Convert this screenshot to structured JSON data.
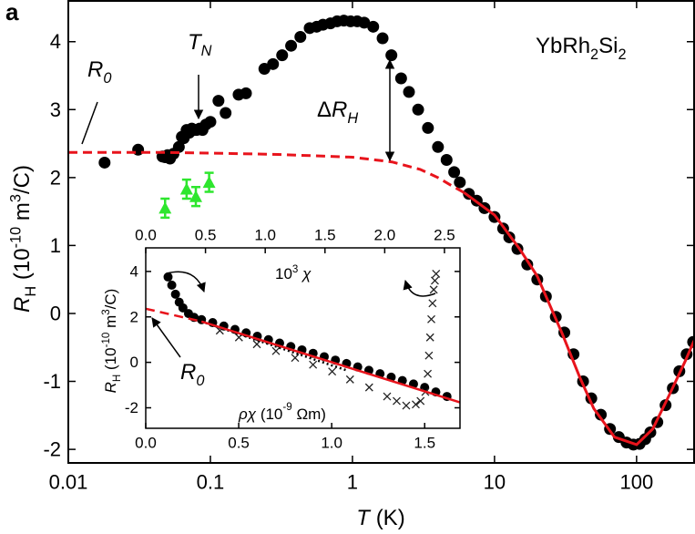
{
  "chart_data": [
    {
      "type": "scatter",
      "panel_label": "a",
      "x_label": {
        "parts": [
          "T",
          "(K)"
        ]
      },
      "y_label": {
        "parts": [
          "R",
          "H",
          "(10",
          "-10",
          "m",
          "3",
          "/C)"
        ]
      },
      "xscale": "log",
      "xlim": [
        0.01,
        254
      ],
      "xticks": [
        0.01,
        0.1,
        1,
        10,
        100
      ],
      "ylim": [
        -2.2,
        4.6
      ],
      "yticks": [
        -2,
        -1,
        0,
        1,
        2,
        3,
        4
      ],
      "annotations": [
        {
          "parts": [
            "YbRh",
            "2",
            "Si",
            "2"
          ]
        },
        {
          "parts": [
            "T",
            "N"
          ]
        },
        {
          "parts": [
            "R",
            "0"
          ]
        },
        {
          "parts": [
            "Δ",
            "R",
            "H"
          ]
        }
      ],
      "series": [
        {
          "marker": "circle",
          "color": "#000000",
          "x": [
            0.018,
            0.031,
            0.046,
            0.048,
            0.05,
            0.052,
            0.055,
            0.06,
            0.063,
            0.065,
            0.068,
            0.071,
            0.074,
            0.077,
            0.08,
            0.084,
            0.088,
            0.093,
            0.1,
            0.114,
            0.128,
            0.158,
            0.178,
            0.24,
            0.276,
            0.32,
            0.37,
            0.43,
            0.5,
            0.56,
            0.62,
            0.7,
            0.78,
            0.87,
            0.97,
            1.08,
            1.21,
            1.4,
            1.63,
            1.88,
            2.2,
            2.5,
            2.9,
            3.4,
            4.0,
            4.6,
            5.2,
            5.7,
            6.6,
            7.5,
            8.5,
            10,
            11.5,
            12.7,
            14.5,
            17,
            20,
            23,
            27,
            31,
            36,
            42,
            48,
            56,
            65,
            75,
            85,
            95,
            105,
            115,
            125,
            140,
            160,
            180,
            200,
            225,
            250
          ],
          "values": [
            2.22,
            2.41,
            2.31,
            2.3,
            2.33,
            2.28,
            2.35,
            2.45,
            2.6,
            2.58,
            2.7,
            2.66,
            2.72,
            2.7,
            2.7,
            2.72,
            2.7,
            2.78,
            2.82,
            3.13,
            2.95,
            3.22,
            3.24,
            3.6,
            3.67,
            3.8,
            3.94,
            4.07,
            4.2,
            4.22,
            4.25,
            4.27,
            4.3,
            4.31,
            4.3,
            4.3,
            4.28,
            4.22,
            4.05,
            3.8,
            3.46,
            3.26,
            3.0,
            2.73,
            2.45,
            2.26,
            2.08,
            1.93,
            1.76,
            1.66,
            1.55,
            1.42,
            1.25,
            1.12,
            0.95,
            0.72,
            0.5,
            0.25,
            -0.05,
            -0.28,
            -0.6,
            -1.0,
            -1.25,
            -1.49,
            -1.7,
            -1.82,
            -1.9,
            -1.93,
            -1.92,
            -1.85,
            -1.75,
            -1.6,
            -1.35,
            -1.1,
            -0.85,
            -0.6,
            -0.42
          ]
        },
        {
          "marker": "triangle",
          "color": "#2ee62e",
          "x": [
            0.048,
            0.068,
            0.079,
            0.098
          ],
          "values": [
            1.55,
            1.83,
            1.72,
            1.93
          ],
          "errors": [
            0.14,
            0.14,
            0.14,
            0.14
          ]
        },
        {
          "marker": "line",
          "dash": "dashed",
          "color": "#e8141c",
          "x": [
            0.01,
            0.05,
            0.1,
            0.3,
            1,
            1.9,
            3,
            4,
            5,
            6.1
          ],
          "values": [
            2.37,
            2.37,
            2.36,
            2.34,
            2.3,
            2.23,
            2.12,
            2.0,
            1.88,
            1.78
          ]
        },
        {
          "marker": "line",
          "dash": "solid",
          "color": "#e8141c",
          "x": [
            6.1,
            10,
            15,
            20,
            30,
            40,
            50,
            70,
            100,
            130,
            170,
            220,
            254
          ],
          "values": [
            1.78,
            1.45,
            0.95,
            0.55,
            -0.3,
            -0.95,
            -1.4,
            -1.82,
            -1.93,
            -1.7,
            -1.2,
            -0.7,
            -0.4
          ]
        }
      ]
    },
    {
      "type": "scatter",
      "x_label": {
        "parts": [
          "ρχ",
          "(10",
          "-9",
          "Ωm)"
        ]
      },
      "y_label": {
        "parts": [
          "R",
          "H",
          "(10",
          "-10",
          "m",
          "3",
          "/C)"
        ]
      },
      "xlim": [
        0,
        1.69
      ],
      "xticks": [
        {
          "value": 0,
          "label": "0.0"
        },
        0.5,
        {
          "value": 1,
          "label": "1.0"
        },
        1.5
      ],
      "x2lim": [
        0,
        2.63
      ],
      "x2ticks": [
        {
          "value": 0,
          "label": "0.0"
        },
        0.5,
        {
          "value": 1,
          "label": "1.0"
        },
        1.5,
        {
          "value": 2,
          "label": "2.0"
        },
        2.5
      ],
      "ylim": [
        -2.9,
        5.04
      ],
      "yticks": [
        -2,
        0,
        2,
        4
      ],
      "annotations": [
        {
          "parts": [
            "10",
            "3",
            "χ"
          ]
        },
        {
          "parts": [
            "R",
            "0"
          ]
        }
      ],
      "series": [
        {
          "marker": "circle",
          "color": "#000000",
          "x": [
            0.12,
            0.14,
            0.16,
            0.18,
            0.2,
            0.23,
            0.26,
            0.3,
            0.36,
            0.42,
            0.48,
            0.54,
            0.6,
            0.66,
            0.72,
            0.78,
            0.84,
            0.9,
            0.96,
            1.02,
            1.08,
            1.14,
            1.2,
            1.26,
            1.32,
            1.38,
            1.44,
            1.5,
            1.56,
            1.62
          ],
          "values": [
            3.76,
            3.4,
            3.0,
            2.65,
            2.4,
            2.15,
            1.98,
            1.88,
            1.75,
            1.6,
            1.45,
            1.3,
            1.15,
            1.0,
            0.85,
            0.7,
            0.55,
            0.4,
            0.25,
            0.1,
            -0.05,
            -0.2,
            -0.35,
            -0.5,
            -0.65,
            -0.8,
            -0.95,
            -1.1,
            -1.3,
            -1.5
          ]
        },
        {
          "marker": "cross",
          "color": "#222222",
          "xaxis": "x2",
          "x": [
            0.62,
            0.78,
            0.93,
            1.09,
            1.25,
            1.4,
            1.56,
            1.71,
            1.87,
            2.02,
            2.1,
            2.18,
            2.26,
            2.3,
            2.34,
            2.36,
            2.37,
            2.38,
            2.39,
            2.4,
            2.41,
            2.42,
            2.43
          ],
          "values": [
            1.4,
            1.1,
            0.8,
            0.5,
            0.2,
            -0.1,
            -0.4,
            -0.75,
            -1.1,
            -1.5,
            -1.7,
            -1.9,
            -1.85,
            -1.7,
            -1.3,
            -0.5,
            0.3,
            1.1,
            1.9,
            2.6,
            3.2,
            3.6,
            3.9
          ]
        },
        {
          "marker": "line",
          "dash": "dotted",
          "color": "#000000",
          "x": [
            0.3,
            1.08
          ],
          "values": [
            1.8,
            -0.35
          ]
        },
        {
          "marker": "line",
          "dash": "dashed",
          "color": "#e8141c",
          "x": [
            0,
            0.3
          ],
          "values": [
            2.36,
            1.8
          ]
        },
        {
          "marker": "line",
          "dash": "solid",
          "color": "#e8141c",
          "x": [
            0.3,
            1.69
          ],
          "values": [
            1.8,
            -1.76
          ]
        }
      ]
    }
  ]
}
